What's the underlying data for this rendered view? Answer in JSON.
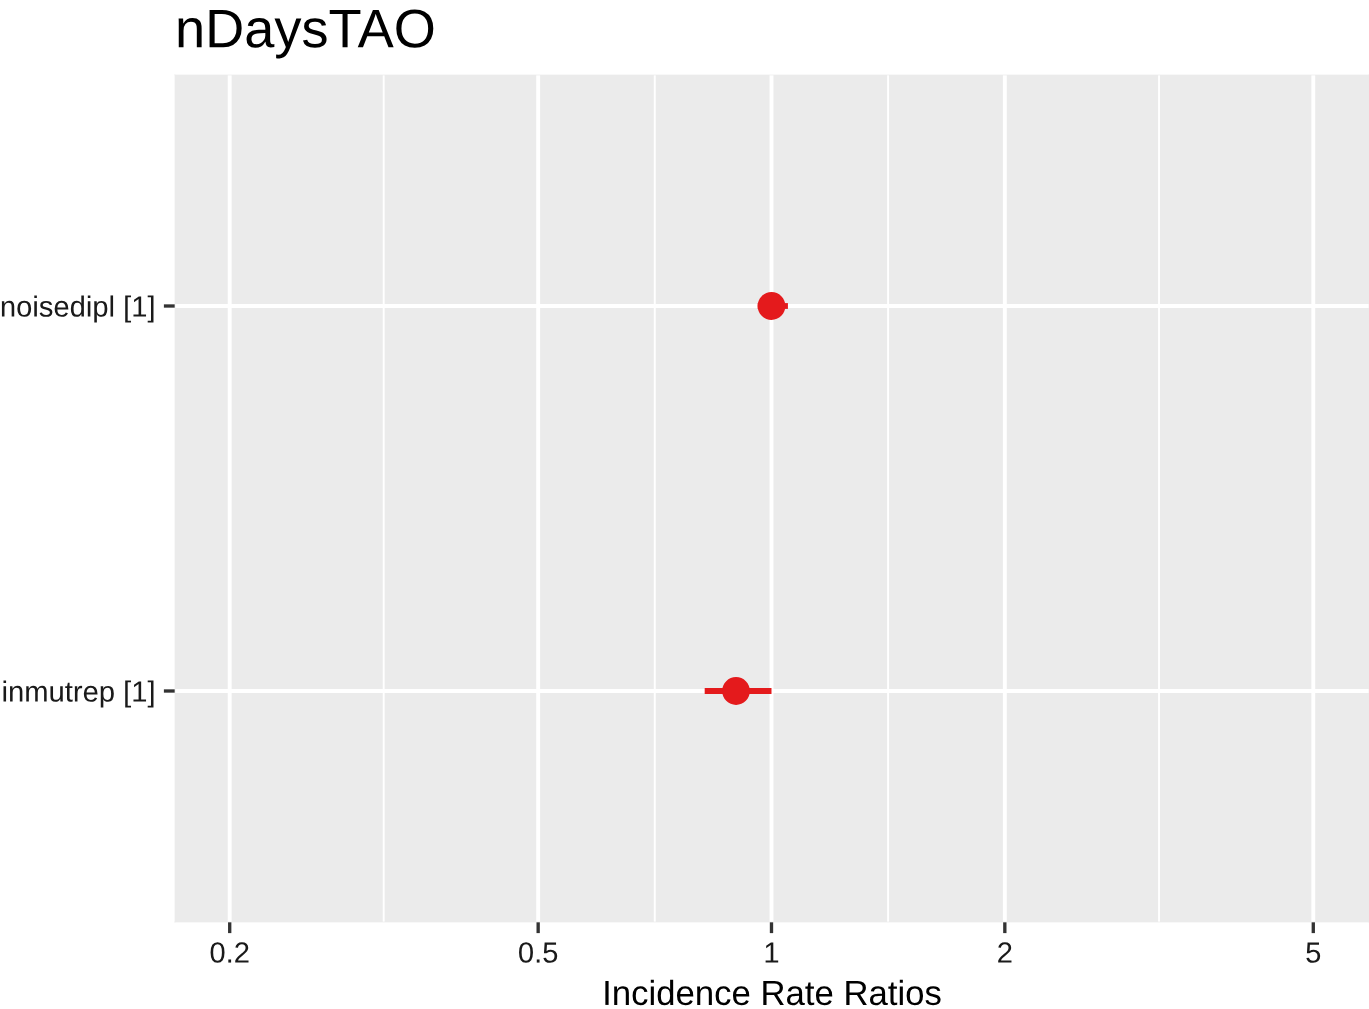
{
  "chart_data": {
    "type": "scatter",
    "title": "nDaysTAO",
    "xlabel": "Incidence Rate Ratios",
    "orientation": "horizontal",
    "categories": [
      "noisedipl [1]",
      "inmutrep [1]"
    ],
    "series": [
      {
        "color": "#e41a1c",
        "values": [
          1.0,
          0.9
        ],
        "errors": [
          [
            0.96,
            1.05
          ],
          [
            0.82,
            1.0
          ]
        ]
      }
    ],
    "log": "x",
    "xlim": [
      0.17,
      5.9
    ],
    "xticks": [
      0.2,
      {
        "value": 0.316,
        "label": null
      },
      0.5,
      {
        "value": 0.707,
        "label": null
      },
      1,
      {
        "value": 1.414,
        "label": null
      },
      2,
      {
        "value": 3.162,
        "label": null
      },
      5
    ],
    "grid": true,
    "marker": "circle"
  }
}
